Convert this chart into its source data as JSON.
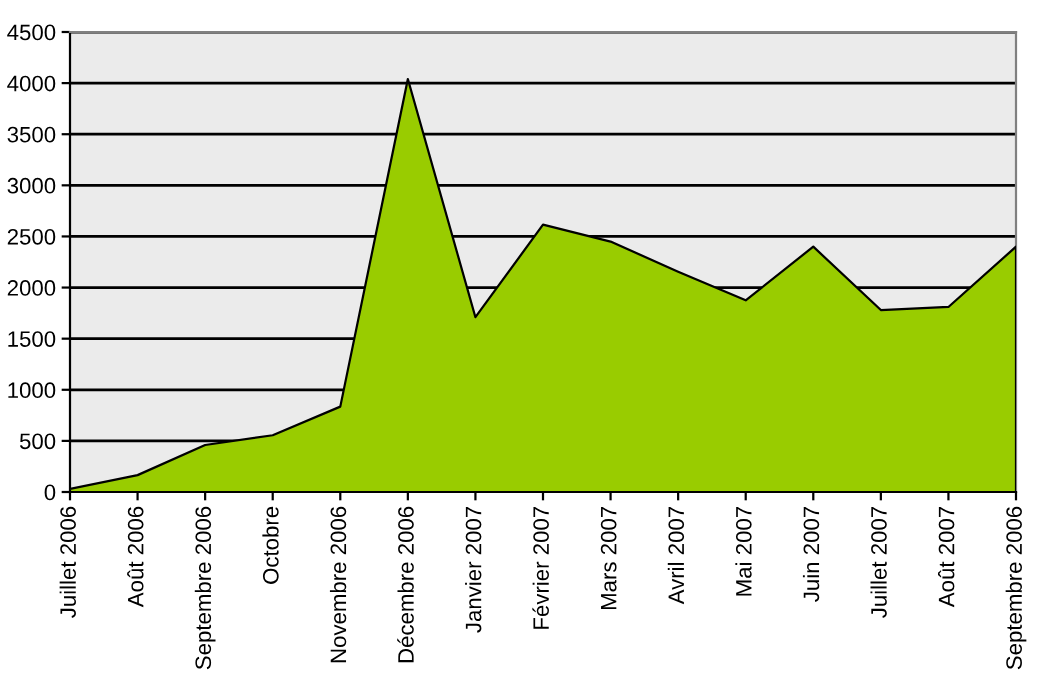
{
  "chart_data": {
    "type": "area",
    "categories": [
      "Juillet 2006",
      "Août 2006",
      "Septembre 2006",
      "Octobre",
      "Novembre 2006",
      "Décembre 2006",
      "Janvier 2007",
      "Février 2007",
      "Mars 2007",
      "Avril 2007",
      "Mai 2007",
      "Juin 2007",
      "Juillet 2007",
      "Août 2007",
      "Septembre 2006"
    ],
    "series": [
      {
        "color": "#99cc00",
        "values": [
          30,
          165,
          460,
          555,
          835,
          4040,
          1710,
          2615,
          2450,
          2155,
          1875,
          2400,
          1780,
          1810,
          2400
        ]
      }
    ],
    "ylim": [
      0,
      4500
    ],
    "yticks": [
      0,
      500,
      1000,
      1500,
      2000,
      2500,
      3000,
      3500,
      4000,
      4500
    ],
    "grid": "y",
    "legend": false
  }
}
